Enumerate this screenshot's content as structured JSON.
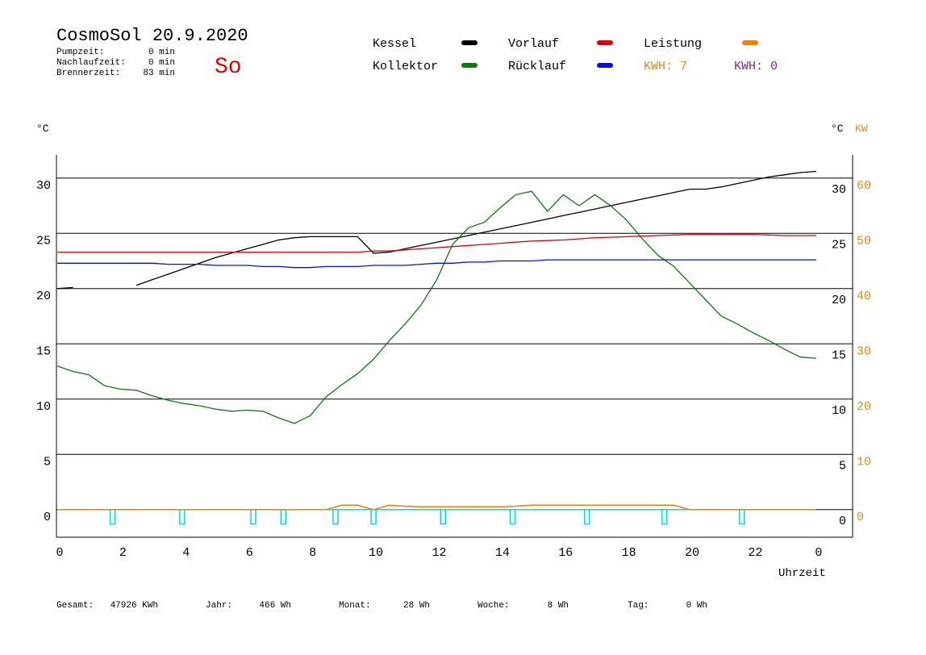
{
  "header": {
    "title": "CosmoSol 20.9.2020",
    "info": [
      {
        "label": "Pumpzeit:",
        "value": "0 min"
      },
      {
        "label": "Nachlaufzeit:",
        "value": "0 min"
      },
      {
        "label": "Brennerzeit:",
        "value": "83 min"
      }
    ],
    "day": "So",
    "energy": [
      {
        "text": "KWH: 7",
        "color": "#e08a1e"
      },
      {
        "text": "KWH: 0",
        "color": "#7a2a8a"
      }
    ]
  },
  "chart_data": {
    "type": "line",
    "y_unit": "°C",
    "y2_unit": "KW",
    "x_label": "Uhrzeit",
    "x": [
      0,
      0.5,
      1,
      1.5,
      2,
      2.5,
      3,
      3.5,
      4,
      4.5,
      5,
      5.5,
      6,
      6.5,
      7,
      7.5,
      8,
      8.5,
      9,
      9.5,
      10,
      10.5,
      11,
      11.5,
      12,
      12.5,
      13,
      13.5,
      14,
      14.5,
      15,
      15.5,
      16,
      16.5,
      17,
      17.5,
      18,
      18.5,
      19,
      19.5,
      20,
      20.5,
      21,
      21.5,
      22,
      22.5,
      23,
      23.5,
      24
    ],
    "series": [
      {
        "name": "Kessel",
        "color": "#000000",
        "values": [
          20.0,
          20.1,
          null,
          null,
          null,
          20.3,
          20.8,
          21.3,
          21.8,
          22.3,
          22.8,
          23.2,
          23.6,
          24.0,
          24.4,
          24.6,
          24.7,
          24.7,
          24.7,
          24.7,
          23.2,
          23.3,
          23.6,
          23.9,
          24.2,
          24.5,
          24.8,
          25.1,
          25.4,
          25.7,
          26.0,
          26.3,
          26.6,
          26.9,
          27.2,
          27.5,
          27.8,
          28.1,
          28.4,
          28.7,
          29.0,
          29.0,
          29.2,
          29.5,
          29.8,
          30.1,
          30.3,
          30.5,
          30.6
        ]
      },
      {
        "name": "Kollektor",
        "color": "#0a7a0a",
        "values": [
          13.0,
          12.5,
          12.2,
          11.2,
          10.9,
          10.8,
          10.3,
          9.9,
          9.6,
          9.4,
          9.1,
          8.9,
          9.0,
          8.9,
          8.3,
          7.8,
          8.5,
          10.2,
          11.3,
          12.3,
          13.6,
          15.3,
          16.8,
          18.5,
          20.8,
          24.0,
          25.5,
          26.0,
          27.3,
          28.5,
          28.8,
          27.0,
          28.5,
          27.5,
          28.5,
          27.5,
          26.2,
          24.5,
          23.0,
          22.0,
          20.5,
          19.0,
          17.5,
          16.8,
          16.0,
          15.3,
          14.5,
          13.8,
          13.7
        ]
      },
      {
        "name": "Vorlauf",
        "color": "#e00000",
        "values": [
          23.3,
          23.3,
          23.3,
          23.3,
          23.3,
          23.3,
          23.3,
          23.3,
          23.3,
          23.3,
          23.3,
          23.3,
          23.3,
          23.3,
          23.3,
          23.3,
          23.3,
          23.3,
          23.3,
          23.3,
          23.4,
          23.4,
          23.5,
          23.6,
          23.7,
          23.8,
          23.9,
          24.0,
          24.1,
          24.2,
          24.3,
          24.35,
          24.4,
          24.5,
          24.6,
          24.65,
          24.7,
          24.75,
          24.8,
          24.85,
          24.9,
          24.9,
          24.9,
          24.9,
          24.9,
          24.85,
          24.8,
          24.8,
          24.8
        ]
      },
      {
        "name": "Rücklauf",
        "color": "#0010e0",
        "values": [
          22.3,
          22.3,
          22.3,
          22.3,
          22.3,
          22.3,
          22.3,
          22.2,
          22.2,
          22.2,
          22.1,
          22.1,
          22.1,
          22.0,
          22.0,
          21.9,
          21.9,
          22.0,
          22.0,
          22.0,
          22.1,
          22.1,
          22.1,
          22.2,
          22.3,
          22.3,
          22.4,
          22.4,
          22.5,
          22.5,
          22.5,
          22.6,
          22.6,
          22.6,
          22.6,
          22.6,
          22.6,
          22.6,
          22.6,
          22.6,
          22.6,
          22.6,
          22.6,
          22.6,
          22.6,
          22.6,
          22.6,
          22.6,
          22.6
        ]
      },
      {
        "name": "Leistung",
        "color": "#f08000",
        "axis": "y2",
        "values": [
          0,
          0,
          0,
          0,
          0,
          0,
          0,
          0,
          0,
          0,
          0,
          0,
          0,
          0,
          0,
          0,
          0,
          0,
          0.8,
          0.8,
          0,
          0.8,
          0.6,
          0.5,
          0.5,
          0.5,
          0.5,
          0.5,
          0.5,
          0.6,
          0.8,
          0.8,
          0.8,
          0.8,
          0.8,
          0.8,
          0.8,
          0.8,
          0.8,
          0.8,
          0,
          0,
          0,
          0,
          0,
          0,
          0,
          0,
          0
        ]
      }
    ],
    "pump": {
      "color": "#00d8e0",
      "x": [
        1.75,
        3.95,
        6.2,
        7.15,
        8.8,
        10.0,
        12.2,
        14.4,
        16.75,
        19.2,
        21.65
      ],
      "values": [
        -1.3,
        -1.3,
        -1.3,
        -1.3,
        -1.3,
        -1.3,
        -1.3,
        -1.3,
        -1.3,
        -1.3,
        -1.3
      ]
    },
    "xlim": [
      0,
      25.15
    ],
    "xticks": [
      0,
      2,
      4,
      6,
      8,
      10,
      12,
      14,
      16,
      18,
      20,
      22,
      {
        "value": 24,
        "label": "0"
      }
    ],
    "ylim": [
      -2.5,
      32.1
    ],
    "yticks": [
      0,
      5,
      10,
      15,
      20,
      25,
      30
    ],
    "y2lim": [
      -5,
      64.2
    ],
    "y2ticks": [
      0,
      10,
      20,
      30,
      40,
      50,
      60
    ],
    "y2_color": "#e08a1e",
    "grid": true
  },
  "footer": [
    {
      "label": "Gesamt:",
      "value": "47926 KWh"
    },
    {
      "label": "Jahr:",
      "value": "466 Wh"
    },
    {
      "label": "Monat:",
      "value": "28 Wh"
    },
    {
      "label": "Woche:",
      "value": "8 Wh"
    },
    {
      "label": "Tag:",
      "value": "0 Wh"
    }
  ]
}
